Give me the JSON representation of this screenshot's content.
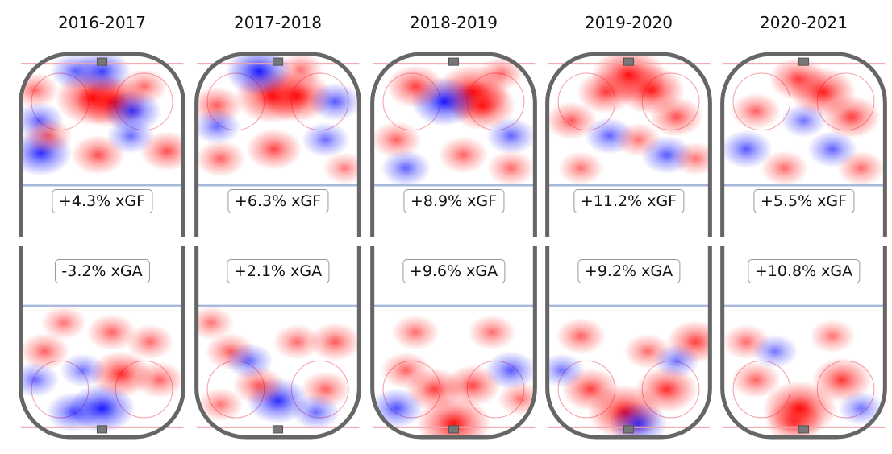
{
  "chart_data": {
    "type": "heatmap",
    "description_units": "rink feet: x across ice (-42.5..42.5), y distance from goal line toward blue line (0..64); v = relative rate (+red, -blue)",
    "colors": {
      "positive": "#ff0000",
      "negative": "#0000ff",
      "outline": "#666666",
      "red_line": "#f2a0a8",
      "blue_line": "#a8b8dc"
    },
    "panels": [
      {
        "season": "2016-2017",
        "xgf_label": "+4.3% xGF",
        "xga_label": "-3.2% xGA",
        "xgf_spots": [
          {
            "x": -5,
            "y": 18,
            "v": 1
          },
          {
            "x": 5,
            "y": 20,
            "v": 0.9
          },
          {
            "x": 0,
            "y": 4,
            "v": -0.6
          },
          {
            "x": -14,
            "y": 4,
            "v": -0.4
          },
          {
            "x": 16,
            "y": 25,
            "v": -0.6
          },
          {
            "x": -32,
            "y": 47,
            "v": -0.7
          },
          {
            "x": -33,
            "y": 30,
            "v": -0.4
          },
          {
            "x": -2,
            "y": 48,
            "v": 0.5
          },
          {
            "x": 34,
            "y": 46,
            "v": 0.5
          },
          {
            "x": -28,
            "y": 38,
            "v": 0.35
          },
          {
            "x": -35,
            "y": 14,
            "v": 0.35
          },
          {
            "x": 22,
            "y": 12,
            "v": 0.35
          },
          {
            "x": 15,
            "y": 38,
            "v": -0.35
          }
        ],
        "xga_spots": [
          {
            "x": 0,
            "y": 10,
            "v": -0.8
          },
          {
            "x": 10,
            "y": 28,
            "v": 0.7
          },
          {
            "x": -15,
            "y": 8,
            "v": -0.5
          },
          {
            "x": 5,
            "y": 50,
            "v": 0.4
          },
          {
            "x": -30,
            "y": 40,
            "v": 0.4
          },
          {
            "x": 30,
            "y": 25,
            "v": 0.4
          },
          {
            "x": 25,
            "y": 45,
            "v": 0.35
          },
          {
            "x": -35,
            "y": 25,
            "v": -0.35
          },
          {
            "x": -10,
            "y": 30,
            "v": -0.3
          },
          {
            "x": -20,
            "y": 55,
            "v": 0.3
          }
        ]
      },
      {
        "season": "2017-2018",
        "xgf_label": "+6.3% xGF",
        "xga_label": "+2.1% xGA",
        "xgf_spots": [
          {
            "x": -3,
            "y": 17,
            "v": 1
          },
          {
            "x": 10,
            "y": 17,
            "v": 0.9
          },
          {
            "x": -10,
            "y": 4,
            "v": -0.8
          },
          {
            "x": -32,
            "y": 22,
            "v": 0.45
          },
          {
            "x": 30,
            "y": 20,
            "v": -0.45
          },
          {
            "x": -2,
            "y": 45,
            "v": 0.55
          },
          {
            "x": -30,
            "y": 50,
            "v": 0.4
          },
          {
            "x": -32,
            "y": 33,
            "v": -0.35
          },
          {
            "x": 25,
            "y": 40,
            "v": -0.35
          },
          {
            "x": 12,
            "y": 3,
            "v": 0.3
          },
          {
            "x": 35,
            "y": 55,
            "v": 0.25
          }
        ],
        "xga_spots": [
          {
            "x": 0,
            "y": 14,
            "v": -0.7
          },
          {
            "x": -10,
            "y": 22,
            "v": 0.45
          },
          {
            "x": 25,
            "y": 20,
            "v": 0.4
          },
          {
            "x": -25,
            "y": 40,
            "v": 0.4
          },
          {
            "x": 10,
            "y": 45,
            "v": 0.35
          },
          {
            "x": 30,
            "y": 45,
            "v": 0.45
          },
          {
            "x": -30,
            "y": 12,
            "v": 0.3
          },
          {
            "x": -15,
            "y": 35,
            "v": -0.35
          },
          {
            "x": 20,
            "y": 8,
            "v": -0.35
          },
          {
            "x": -35,
            "y": 55,
            "v": 0.3
          }
        ]
      },
      {
        "season": "2018-2019",
        "xgf_label": "+8.9% xGF",
        "xga_label": "+9.6% xGA",
        "xgf_spots": [
          {
            "x": 10,
            "y": 15,
            "v": 1
          },
          {
            "x": 15,
            "y": 22,
            "v": 0.8
          },
          {
            "x": -5,
            "y": 20,
            "v": -0.8
          },
          {
            "x": -20,
            "y": 12,
            "v": 0.6
          },
          {
            "x": -30,
            "y": 40,
            "v": 0.4
          },
          {
            "x": 30,
            "y": 38,
            "v": -0.4
          },
          {
            "x": -25,
            "y": 55,
            "v": -0.4
          },
          {
            "x": 5,
            "y": 48,
            "v": 0.4
          },
          {
            "x": 30,
            "y": 55,
            "v": 0.35
          },
          {
            "x": 25,
            "y": 5,
            "v": 0.3
          }
        ],
        "xga_spots": [
          {
            "x": 0,
            "y": 2,
            "v": 1
          },
          {
            "x": -10,
            "y": 20,
            "v": 0.6
          },
          {
            "x": 10,
            "y": 22,
            "v": 0.55
          },
          {
            "x": -25,
            "y": 30,
            "v": 0.4
          },
          {
            "x": 30,
            "y": 30,
            "v": -0.45
          },
          {
            "x": -30,
            "y": 10,
            "v": -0.5
          },
          {
            "x": -20,
            "y": 50,
            "v": 0.35
          },
          {
            "x": 20,
            "y": 50,
            "v": 0.35
          },
          {
            "x": 35,
            "y": 15,
            "v": 0.3
          }
        ]
      },
      {
        "season": "2019-2020",
        "xgf_label": "+11.2% xGF",
        "xga_label": "+9.2% xGA",
        "xgf_spots": [
          {
            "x": 0,
            "y": 6,
            "v": 1
          },
          {
            "x": 12,
            "y": 14,
            "v": 0.8
          },
          {
            "x": -12,
            "y": 15,
            "v": 0.6
          },
          {
            "x": 25,
            "y": 28,
            "v": 0.5
          },
          {
            "x": -30,
            "y": 30,
            "v": 0.45
          },
          {
            "x": -10,
            "y": 38,
            "v": -0.4
          },
          {
            "x": 20,
            "y": 48,
            "v": -0.45
          },
          {
            "x": -25,
            "y": 55,
            "v": 0.3
          },
          {
            "x": 35,
            "y": 50,
            "v": 0.3
          },
          {
            "x": 5,
            "y": 40,
            "v": 0.3
          }
        ],
        "xga_spots": [
          {
            "x": -2,
            "y": 8,
            "v": 1
          },
          {
            "x": 5,
            "y": 2,
            "v": -0.6
          },
          {
            "x": 20,
            "y": 20,
            "v": 0.7
          },
          {
            "x": -20,
            "y": 20,
            "v": 0.6
          },
          {
            "x": 35,
            "y": 45,
            "v": 0.6
          },
          {
            "x": -25,
            "y": 48,
            "v": 0.4
          },
          {
            "x": 10,
            "y": 40,
            "v": 0.35
          },
          {
            "x": -35,
            "y": 30,
            "v": -0.3
          },
          {
            "x": 25,
            "y": 35,
            "v": -0.3
          }
        ]
      },
      {
        "season": "2020-2021",
        "xgf_label": "+5.5% xGF",
        "xga_label": "+10.8% xGA",
        "xgf_spots": [
          {
            "x": 10,
            "y": 15,
            "v": 0.8
          },
          {
            "x": -3,
            "y": 8,
            "v": 0.6
          },
          {
            "x": 25,
            "y": 28,
            "v": 0.6
          },
          {
            "x": -25,
            "y": 25,
            "v": 0.4
          },
          {
            "x": -30,
            "y": 45,
            "v": -0.45
          },
          {
            "x": 15,
            "y": 45,
            "v": -0.4
          },
          {
            "x": 30,
            "y": 55,
            "v": 0.35
          },
          {
            "x": -10,
            "y": 55,
            "v": 0.35
          },
          {
            "x": 0,
            "y": 30,
            "v": -0.3
          }
        ],
        "xga_spots": [
          {
            "x": -2,
            "y": 10,
            "v": 1
          },
          {
            "x": -5,
            "y": 3,
            "v": 0.6
          },
          {
            "x": 20,
            "y": 25,
            "v": 0.65
          },
          {
            "x": -25,
            "y": 25,
            "v": 0.4
          },
          {
            "x": -30,
            "y": 45,
            "v": 0.35
          },
          {
            "x": 15,
            "y": 48,
            "v": 0.3
          },
          {
            "x": 30,
            "y": 10,
            "v": -0.3
          },
          {
            "x": -15,
            "y": 40,
            "v": -0.3
          }
        ]
      }
    ]
  }
}
